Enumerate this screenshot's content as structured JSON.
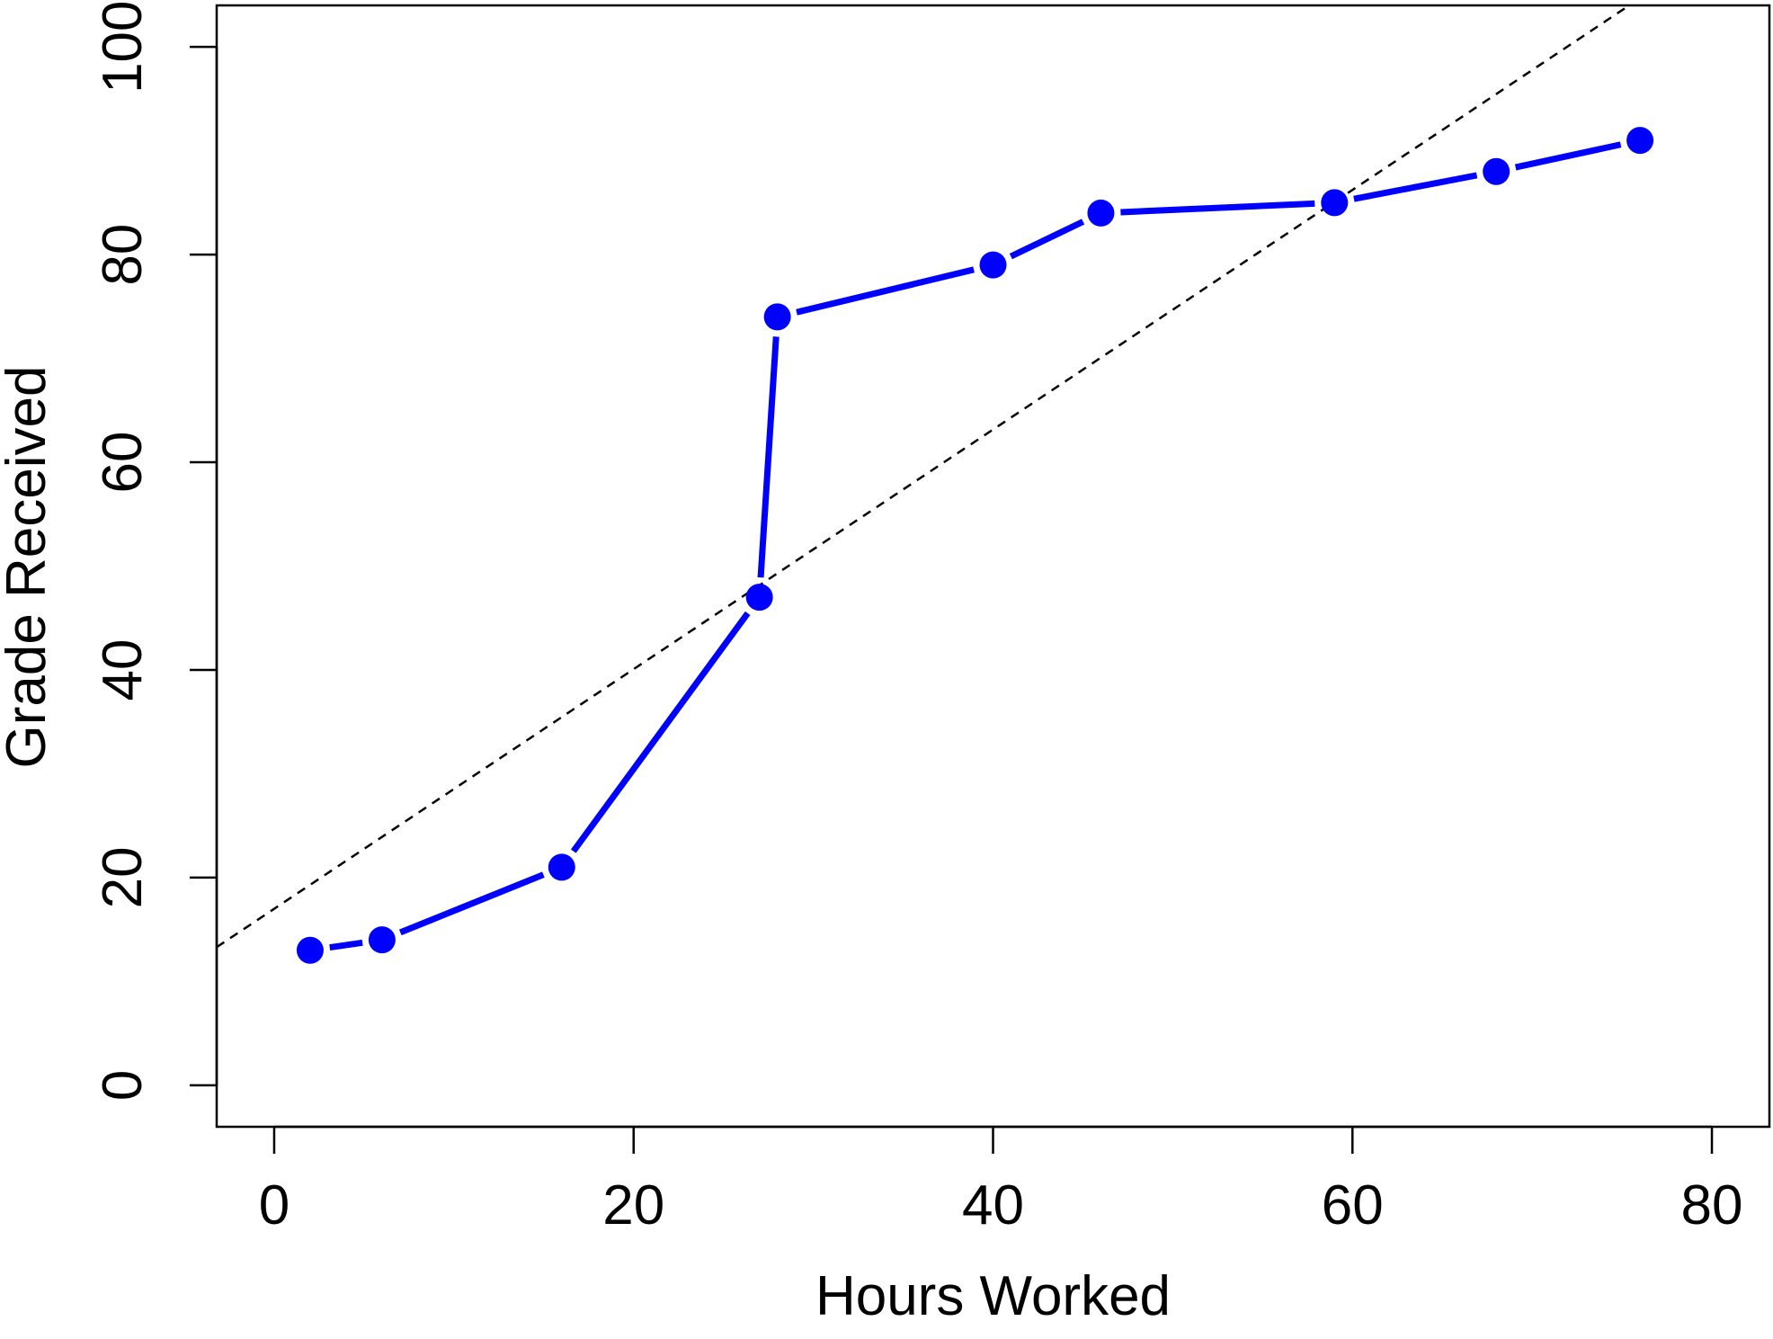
{
  "chart_data": {
    "type": "line",
    "title": "",
    "xlabel": "Hours Worked",
    "ylabel": "Grade Received",
    "xlim": [
      -3.2,
      83.2
    ],
    "ylim": [
      -4,
      104
    ],
    "x_ticks": [
      0,
      20,
      40,
      60,
      80
    ],
    "y_ticks": [
      0,
      20,
      40,
      60,
      80,
      100
    ],
    "grid": false,
    "legend": "none",
    "series": [
      {
        "style": "line-with-points",
        "color": "#0000ff",
        "x": [
          2,
          6,
          16,
          27,
          28,
          40,
          46,
          59,
          68,
          76
        ],
        "y": [
          13,
          14,
          21,
          47,
          74,
          79,
          84,
          85,
          88,
          91
        ]
      }
    ],
    "reference_line": {
      "style": "dashed",
      "color": "#000000",
      "x_range": [
        -3.2,
        75.4
      ],
      "y_range": [
        13.3,
        104
      ]
    }
  }
}
